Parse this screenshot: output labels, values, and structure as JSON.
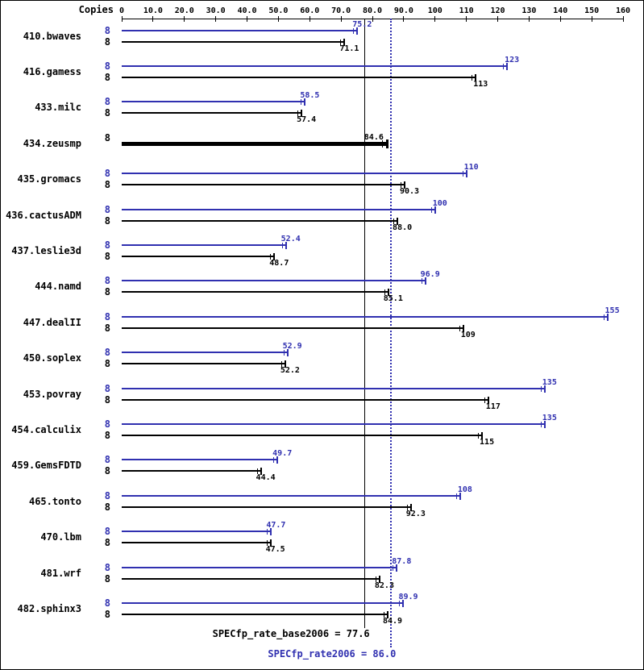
{
  "header": {
    "copies_label": "Copies"
  },
  "chart_data": {
    "type": "bar",
    "orientation": "horizontal",
    "axis": {
      "min": 0,
      "max": 160,
      "tick_values": [
        0,
        10,
        20,
        30,
        40,
        50,
        60,
        70,
        80,
        90,
        100,
        110,
        120,
        130,
        140,
        150,
        160
      ],
      "tick_labels": [
        "0",
        "10.0",
        "20.0",
        "30.0",
        "40.0",
        "50.0",
        "60.0",
        "70.0",
        "80.0",
        "90.0",
        "100",
        "110",
        "120",
        "130",
        "140",
        "150",
        "160"
      ]
    },
    "colors": {
      "peak": "#3030b0",
      "base": "#000000"
    },
    "benchmarks": [
      {
        "name": "410.bwaves",
        "copies": "8",
        "peak": 75.2,
        "peak_label": "75.2",
        "base": 71.1,
        "base_label": "71.1"
      },
      {
        "name": "416.gamess",
        "copies": "8",
        "peak": 123,
        "peak_label": "123",
        "base": 113,
        "base_label": "113"
      },
      {
        "name": "433.milc",
        "copies": "8",
        "peak": 58.5,
        "peak_label": "58.5",
        "base": 57.4,
        "base_label": "57.4"
      },
      {
        "name": "434.zeusmp",
        "copies": "8",
        "peak": 84.6,
        "base": 84.6,
        "merged": true,
        "value_label": "84.6"
      },
      {
        "name": "435.gromacs",
        "copies": "8",
        "peak": 110,
        "peak_label": "110",
        "base": 90.3,
        "base_label": "90.3"
      },
      {
        "name": "436.cactusADM",
        "copies": "8",
        "peak": 100,
        "peak_label": "100",
        "base": 88.0,
        "base_label": "88.0"
      },
      {
        "name": "437.leslie3d",
        "copies": "8",
        "peak": 52.4,
        "peak_label": "52.4",
        "base": 48.7,
        "base_label": "48.7"
      },
      {
        "name": "444.namd",
        "copies": "8",
        "peak": 96.9,
        "peak_label": "96.9",
        "base": 85.1,
        "base_label": "85.1"
      },
      {
        "name": "447.dealII",
        "copies": "8",
        "peak": 155,
        "peak_label": "155",
        "base": 109,
        "base_label": "109"
      },
      {
        "name": "450.soplex",
        "copies": "8",
        "peak": 52.9,
        "peak_label": "52.9",
        "base": 52.2,
        "base_label": "52.2"
      },
      {
        "name": "453.povray",
        "copies": "8",
        "peak": 135,
        "peak_label": "135",
        "base": 117,
        "base_label": "117"
      },
      {
        "name": "454.calculix",
        "copies": "8",
        "peak": 135,
        "peak_label": "135",
        "base": 115,
        "base_label": "115"
      },
      {
        "name": "459.GemsFDTD",
        "copies": "8",
        "peak": 49.7,
        "peak_label": "49.7",
        "base": 44.4,
        "base_label": "44.4"
      },
      {
        "name": "465.tonto",
        "copies": "8",
        "peak": 108,
        "peak_label": "108",
        "base": 92.3,
        "base_label": "92.3"
      },
      {
        "name": "470.lbm",
        "copies": "8",
        "peak": 47.7,
        "peak_label": "47.7",
        "base": 47.5,
        "base_label": "47.5"
      },
      {
        "name": "481.wrf",
        "copies": "8",
        "peak": 87.8,
        "peak_label": "87.8",
        "base": 82.3,
        "base_label": "82.3"
      },
      {
        "name": "482.sphinx3",
        "copies": "8",
        "peak": 89.9,
        "peak_label": "89.9",
        "base": 84.9,
        "base_label": "84.9"
      }
    ],
    "reference_lines": [
      {
        "label": "SPECfp_rate_base2006 = 77.6",
        "value": 77.6,
        "style": "solid",
        "color": "#000000"
      },
      {
        "label": "SPECfp_rate2006 = 86.0",
        "value": 86.0,
        "style": "dotted",
        "color": "#3030b0"
      }
    ]
  }
}
